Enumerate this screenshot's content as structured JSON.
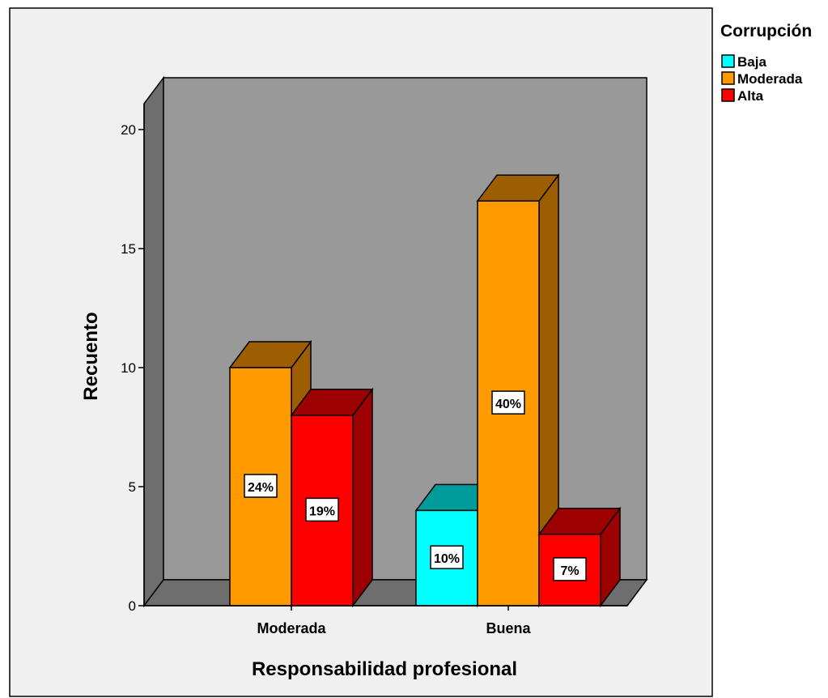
{
  "chart_data": {
    "type": "bar",
    "style": "3d-clustered",
    "xlabel": "Responsabilidad profesional",
    "ylabel": "Recuento",
    "ylim": [
      0,
      20
    ],
    "yticks": [
      0,
      5,
      10,
      15,
      20
    ],
    "categories": [
      "Moderada",
      "Buena"
    ],
    "legend": {
      "title": "Corrupción",
      "placement": "right",
      "entries": [
        "Baja",
        "Moderada",
        "Alta"
      ]
    },
    "series": [
      {
        "name": "Baja",
        "color": "#00ffff",
        "side_color": "#009c9c",
        "values": [
          null,
          4
        ],
        "labels": [
          null,
          "10%"
        ]
      },
      {
        "name": "Moderada",
        "color": "#ff9900",
        "side_color": "#9c5e00",
        "values": [
          10,
          17
        ],
        "labels": [
          "24%",
          "40%"
        ]
      },
      {
        "name": "Alta",
        "color": "#ff0000",
        "side_color": "#9c0000",
        "values": [
          8,
          3
        ],
        "labels": [
          "19%",
          "7%"
        ]
      }
    ],
    "plot_background": "#999999",
    "floor_color": "#6e6e6e",
    "outer_background": "#f0f0f0"
  }
}
